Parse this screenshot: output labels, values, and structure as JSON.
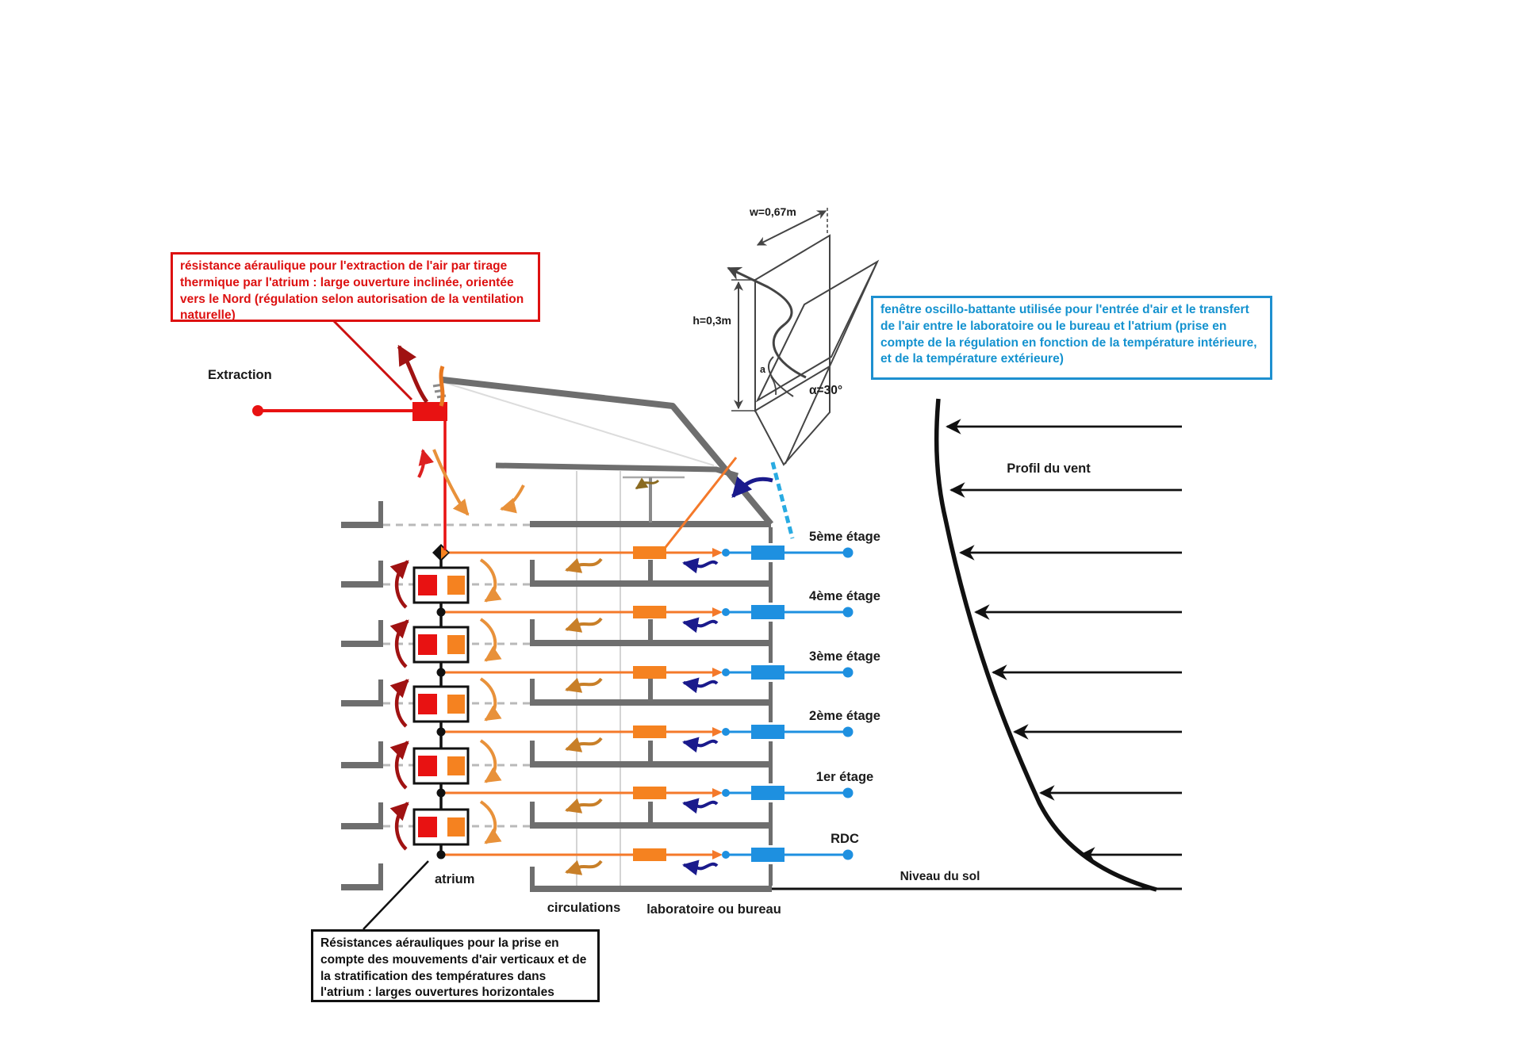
{
  "annotations": {
    "extraction_note": "résistance aéraulique pour l'extraction de l'air par tirage thermique par l'atrium : large ouverture inclinée, orientée vers le Nord (régulation selon autorisation de la ventilation naturelle)",
    "window_note": "fenêtre oscillo-battante utilisée pour l'entrée d'air et le transfert de l'air entre le laboratoire ou le bureau et l'atrium (prise en compte de la régulation en fonction de la température intérieure, et de la température extérieure)",
    "atrium_note": "Résistances aérauliques pour la prise en compte des mouvements d'air verticaux et de la stratification des températures dans l'atrium : larges ouvertures horizontales"
  },
  "labels": {
    "extraction": "Extraction",
    "wind_profile": "Profil du vent",
    "ground_level": "Niveau du sol",
    "atrium": "atrium",
    "circulations": "circulations",
    "laboratory": "laboratoire ou bureau"
  },
  "window_detail": {
    "width": "w=0,67m",
    "height": "h=0,3m",
    "angle": "α=30°",
    "angle_symbol": "a"
  },
  "floors": [
    "5ème étage",
    "4ème étage",
    "3ème étage",
    "2ème étage",
    "1er étage",
    "RDC"
  ],
  "colors": {
    "red": "#e81212",
    "note_red": "#dd1111",
    "dark_red": "#a01212",
    "orange": "#f58220",
    "orange_line": "#f4792a",
    "orange_arrow": "#e8913a",
    "orange_brown": "#c87f28",
    "blue": "#1e90e0",
    "note_blue": "#1492cf",
    "note_blue_border": "#1e90d0",
    "navy": "#1a1a8c",
    "cyan": "#29abe2",
    "grey": "#6e6e6e",
    "light_grey": "#b9b9b9",
    "black": "#111111"
  }
}
